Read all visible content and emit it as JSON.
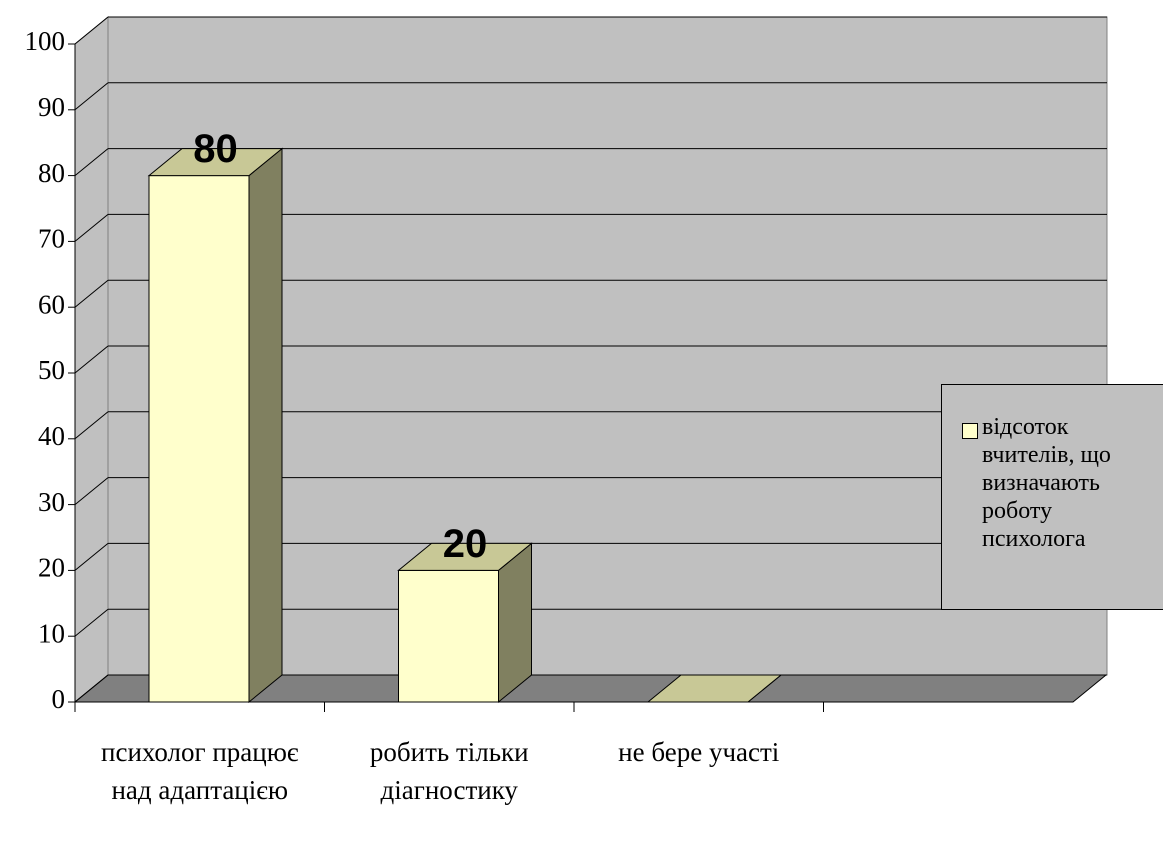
{
  "chart_data": {
    "type": "bar3d",
    "categories": [
      "психолог працює над адаптацією",
      "робить тільки діагностику",
      "не бере участі",
      null
    ],
    "series": [
      {
        "name": "відсоток вчителів, що визначають роботу психолога",
        "color": "#ffffcc",
        "values": [
          80,
          20,
          0,
          null
        ],
        "value_labels": [
          "80",
          "20",
          null,
          null
        ]
      }
    ],
    "ylim": [
      0,
      100
    ],
    "yticks": [
      0,
      10,
      20,
      30,
      40,
      50,
      60,
      70,
      80,
      90,
      100
    ],
    "grid": true,
    "legend": "right"
  }
}
